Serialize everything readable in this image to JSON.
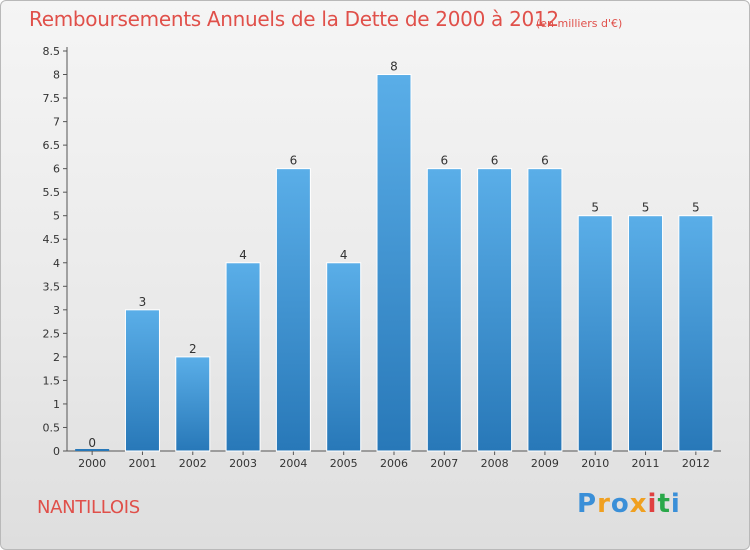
{
  "chart_data": {
    "type": "bar",
    "title": "Remboursements Annuels de la Dette de 2000 à 2012",
    "subtitle": "(en milliers d'€)",
    "categories": [
      "2000",
      "2001",
      "2002",
      "2003",
      "2004",
      "2005",
      "2006",
      "2007",
      "2008",
      "2009",
      "2010",
      "2011",
      "2012"
    ],
    "values": [
      0,
      3,
      2,
      4,
      6,
      4,
      8,
      6,
      6,
      6,
      5,
      5,
      5
    ],
    "ylim": [
      0,
      8.5
    ],
    "yticks": [
      "0",
      "0.5",
      "1",
      "1.5",
      "2",
      "2.5",
      "3",
      "3.5",
      "4",
      "4.5",
      "5",
      "5.5",
      "6",
      "6.5",
      "7",
      "7.5",
      "8",
      "8.5"
    ],
    "xlabel": "",
    "ylabel": "",
    "grid": false,
    "bar_color_top": "#5aaee8",
    "bar_color_bottom": "#2878b8"
  },
  "commune": "NANTILLOIS",
  "logo": {
    "letters": [
      "P",
      "r",
      "o",
      "x",
      "i",
      "t",
      "i"
    ],
    "colors": [
      "#3a8fd8",
      "#f0a020",
      "#3a8fd8",
      "#f0a020",
      "#e04040",
      "#2aa84a",
      "#3a8fd8"
    ]
  }
}
